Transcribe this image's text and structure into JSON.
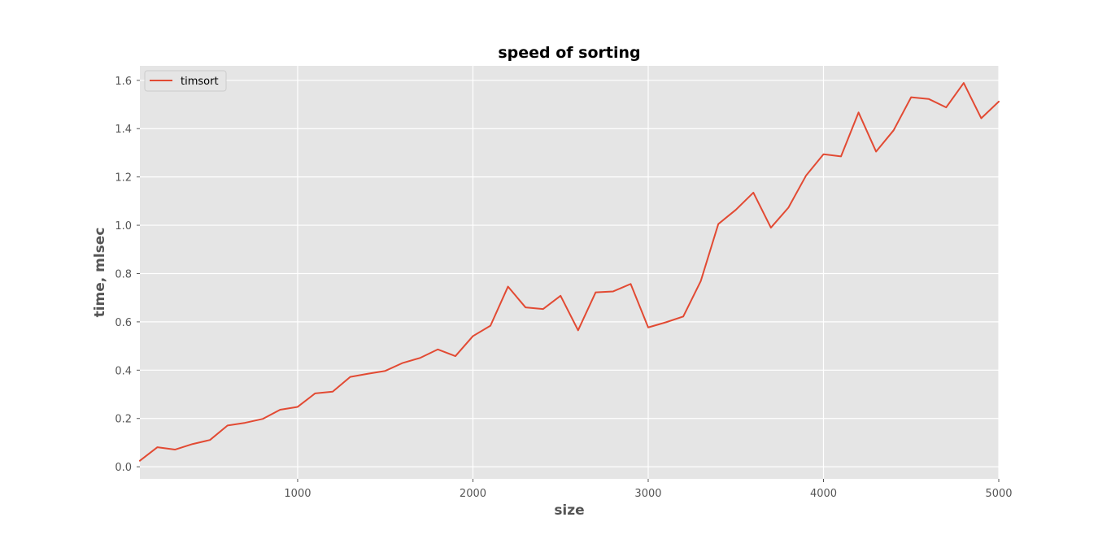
{
  "chart_data": {
    "type": "line",
    "title": "speed of sorting",
    "xlabel": "size",
    "ylabel": "time, mlsec",
    "xlim": [
      100,
      5000
    ],
    "ylim": [
      -0.05,
      1.66
    ],
    "xticks": [
      1000,
      2000,
      3000,
      4000,
      5000
    ],
    "xtick_labels": [
      "1000",
      "2000",
      "3000",
      "4000",
      "5000"
    ],
    "yticks": [
      0.0,
      0.2,
      0.4,
      0.6,
      0.8,
      1.0,
      1.2,
      1.4,
      1.6
    ],
    "ytick_labels": [
      "0.0",
      "0.2",
      "0.4",
      "0.6",
      "0.8",
      "1.0",
      "1.2",
      "1.4",
      "1.6"
    ],
    "grid": true,
    "legend_position": "top-left",
    "colors": {
      "background": "#e5e5e5",
      "grid": "#ffffff",
      "series": "#e24a33",
      "axis_text": "#555555",
      "title_text": "#000000"
    },
    "series": [
      {
        "name": "timsort",
        "x": [
          100,
          200,
          300,
          400,
          500,
          600,
          700,
          800,
          900,
          1000,
          1100,
          1200,
          1300,
          1400,
          1500,
          1600,
          1700,
          1800,
          1900,
          2000,
          2100,
          2200,
          2300,
          2400,
          2500,
          2600,
          2700,
          2800,
          2900,
          3000,
          3100,
          3200,
          3300,
          3400,
          3500,
          3600,
          3700,
          3800,
          3900,
          4000,
          4100,
          4200,
          4300,
          4400,
          4500,
          4600,
          4700,
          4800,
          4900,
          5000
        ],
        "y": [
          0.025,
          0.081,
          0.071,
          0.094,
          0.111,
          0.171,
          0.182,
          0.198,
          0.236,
          0.248,
          0.304,
          0.311,
          0.372,
          0.385,
          0.397,
          0.43,
          0.451,
          0.486,
          0.458,
          0.541,
          0.584,
          0.746,
          0.66,
          0.653,
          0.708,
          0.565,
          0.722,
          0.726,
          0.757,
          0.577,
          0.598,
          0.622,
          0.769,
          1.005,
          1.064,
          1.135,
          0.99,
          1.073,
          1.205,
          1.294,
          1.285,
          1.467,
          1.305,
          1.393,
          1.53,
          1.523,
          1.488,
          1.589,
          1.443,
          1.512
        ]
      }
    ]
  }
}
